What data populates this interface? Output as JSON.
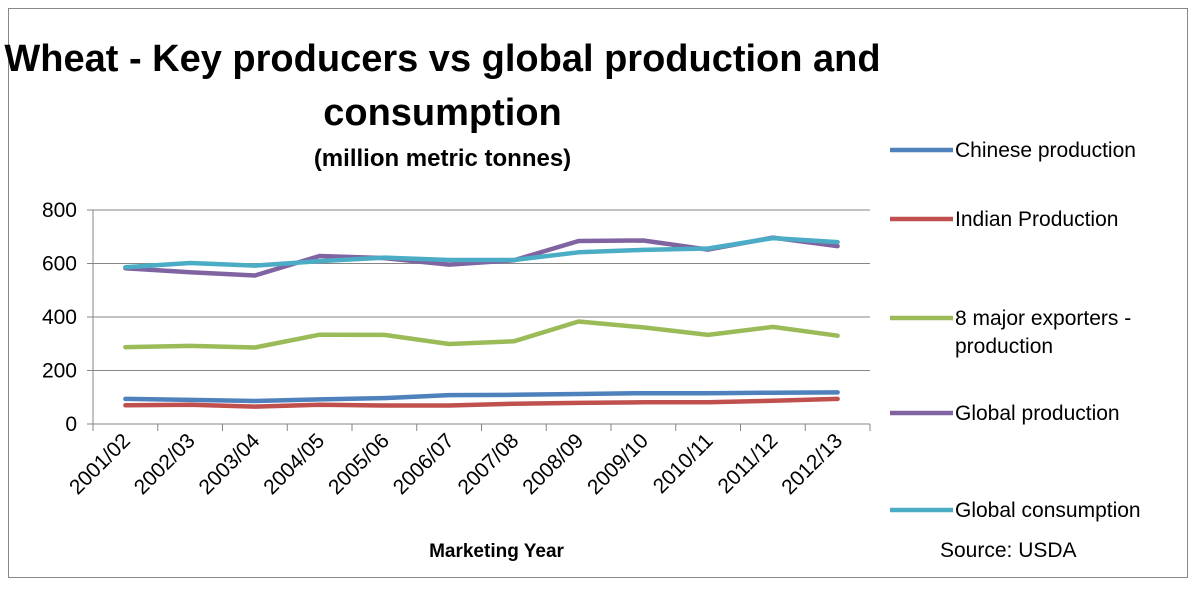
{
  "chart_data": {
    "type": "line",
    "title": "Wheat - Key producers vs global production and",
    "title_line2": "consumption",
    "subtitle": "(million metric tonnes)",
    "xlabel": "Marketing Year",
    "ylabel": "",
    "ylim": [
      0,
      800
    ],
    "yticks": [
      "0",
      "200",
      "400",
      "600",
      "800"
    ],
    "grid": true,
    "legend_position": "right",
    "source": "Source: USDA",
    "categories": [
      "2001/02",
      "2002/03",
      "2003/04",
      "2004/05",
      "2005/06",
      "2006/07",
      "2007/08",
      "2008/09",
      "2009/10",
      "2010/11",
      "2011/12",
      "2012/13"
    ],
    "series": [
      {
        "name": "Chinese production",
        "color": "#4F81BD",
        "values": [
          94,
          90,
          86,
          92,
          97,
          108,
          109,
          112,
          115,
          115,
          117,
          118
        ]
      },
      {
        "name": "Indian Production",
        "color": "#C0504D",
        "values": [
          70,
          72,
          65,
          72,
          69,
          69,
          76,
          79,
          81,
          81,
          87,
          94
        ]
      },
      {
        "name": "8 major exporters -",
        "name_line2": "production",
        "color": "#9BBB59",
        "values": [
          287,
          292,
          286,
          334,
          333,
          299,
          309,
          383,
          361,
          333,
          363,
          330
        ]
      },
      {
        "name": "Global production",
        "color": "#8064A2",
        "values": [
          582,
          567,
          555,
          628,
          620,
          596,
          612,
          684,
          686,
          652,
          697,
          665
        ]
      },
      {
        "name": "Global consumption",
        "color": "#4BACC6",
        "values": [
          586,
          602,
          592,
          609,
          622,
          613,
          613,
          642,
          651,
          656,
          695,
          680
        ]
      }
    ]
  }
}
